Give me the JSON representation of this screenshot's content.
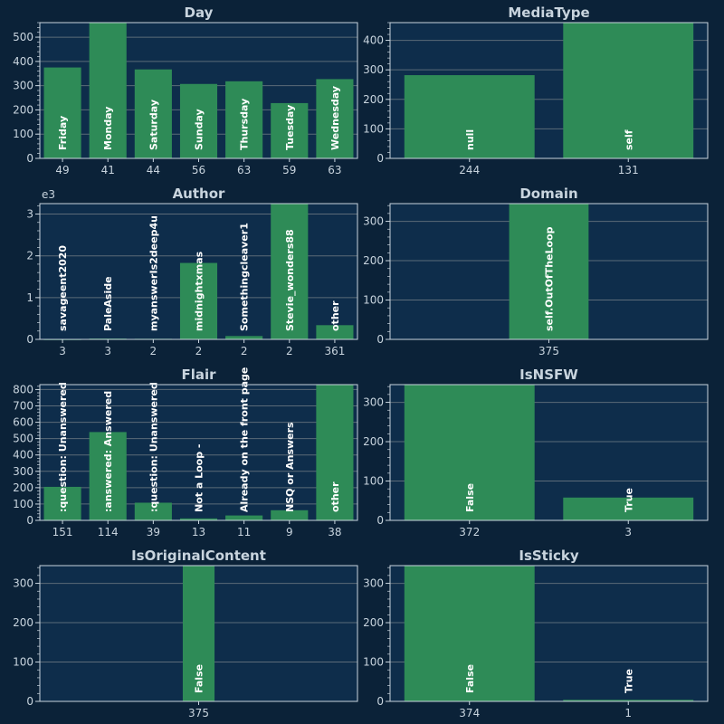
{
  "colors": {
    "background": "#0b2238",
    "plot_area": "#0e2d4b",
    "bar": "#2e8b57",
    "grid": "#5b6b78",
    "axis": "#c8d4de",
    "title": "#c8d4de",
    "bar_label": "#ffffff"
  },
  "chart_data": [
    {
      "type": "bar",
      "title": "Day",
      "categories": [
        "Friday",
        "Monday",
        "Saturday",
        "Sunday",
        "Thursday",
        "Tuesday",
        "Wednesday"
      ],
      "values": [
        375,
        560,
        367,
        307,
        318,
        228,
        327
      ],
      "x_tick_labels": [
        "49",
        "41",
        "44",
        "56",
        "63",
        "59",
        "63"
      ],
      "ylim": [
        0,
        560
      ],
      "y_ticks": [
        0,
        100,
        200,
        300,
        400,
        500
      ],
      "y_ticks_text": [
        "0",
        "100",
        "200",
        "300",
        "400",
        "500"
      ],
      "grid": true
    },
    {
      "type": "bar",
      "title": "MediaType",
      "categories": [
        "null",
        "self"
      ],
      "values": [
        282,
        460
      ],
      "x_tick_labels": [
        "244",
        "131"
      ],
      "ylim": [
        0,
        460
      ],
      "y_ticks": [
        0,
        100,
        200,
        300,
        400
      ],
      "y_ticks_text": [
        "0",
        "100",
        "200",
        "300",
        "400"
      ],
      "grid": true
    },
    {
      "type": "bar",
      "title": "Author",
      "axis_multiplier": "e3",
      "categories": [
        "savageent2020",
        "PaleAside",
        "myanswerIs2deep4u",
        "midnightxmas",
        "Somethingcleaver1",
        "Stevie_wonders88",
        "other"
      ],
      "values": [
        0.005,
        0.02,
        0.015,
        1.83,
        0.08,
        3.25,
        0.34
      ],
      "x_tick_labels": [
        "3",
        "3",
        "2",
        "2",
        "2",
        "2",
        "361"
      ],
      "ylim": [
        0,
        3.25
      ],
      "y_ticks": [
        0,
        1,
        2,
        3
      ],
      "y_ticks_text": [
        "0",
        "1",
        "2",
        "3"
      ],
      "grid": true
    },
    {
      "type": "bar",
      "title": "Domain",
      "categories": [
        "self.OutOfTheLoop"
      ],
      "values": [
        345
      ],
      "x_tick_labels": [
        "375"
      ],
      "ylim": [
        0,
        345
      ],
      "y_ticks": [
        0,
        100,
        200,
        300
      ],
      "y_ticks_text": [
        "0",
        "100",
        "200",
        "300"
      ],
      "grid": true,
      "bar_width_ratio": 0.25
    },
    {
      "type": "bar",
      "title": "Flair",
      "categories": [
        ":question: Unanswered",
        ":answered: Answered",
        ":question: Unanswered",
        "Not a Loop -",
        "Already on the front page",
        "NSQ or Answers",
        "other"
      ],
      "values": [
        205,
        540,
        108,
        12,
        30,
        62,
        830
      ],
      "x_tick_labels": [
        "151",
        "114",
        "39",
        "13",
        "11",
        "9",
        "38"
      ],
      "ylim": [
        0,
        830
      ],
      "y_ticks": [
        0,
        100,
        200,
        300,
        400,
        500,
        600,
        700,
        800
      ],
      "y_ticks_text": [
        "0",
        "100",
        "200",
        "300",
        "400",
        "500",
        "600",
        "700",
        "800"
      ],
      "grid": true
    },
    {
      "type": "bar",
      "title": "IsNSFW",
      "categories": [
        "False",
        "True"
      ],
      "values": [
        345,
        58
      ],
      "x_tick_labels": [
        "372",
        "3"
      ],
      "ylim": [
        0,
        345
      ],
      "y_ticks": [
        0,
        100,
        200,
        300
      ],
      "y_ticks_text": [
        "0",
        "100",
        "200",
        "300"
      ],
      "grid": true
    },
    {
      "type": "bar",
      "title": "IsOriginalContent",
      "categories": [
        "False"
      ],
      "values": [
        345
      ],
      "x_tick_labels": [
        "375"
      ],
      "ylim": [
        0,
        345
      ],
      "y_ticks": [
        0,
        100,
        200,
        300
      ],
      "y_ticks_text": [
        "0",
        "100",
        "200",
        "300"
      ],
      "grid": true,
      "bar_width_ratio": 0.1
    },
    {
      "type": "bar",
      "title": "IsSticky",
      "categories": [
        "False",
        "True"
      ],
      "values": [
        345,
        4
      ],
      "x_tick_labels": [
        "374",
        "1"
      ],
      "ylim": [
        0,
        345
      ],
      "y_ticks": [
        0,
        100,
        200,
        300
      ],
      "y_ticks_text": [
        "0",
        "100",
        "200",
        "300"
      ],
      "grid": true
    }
  ]
}
